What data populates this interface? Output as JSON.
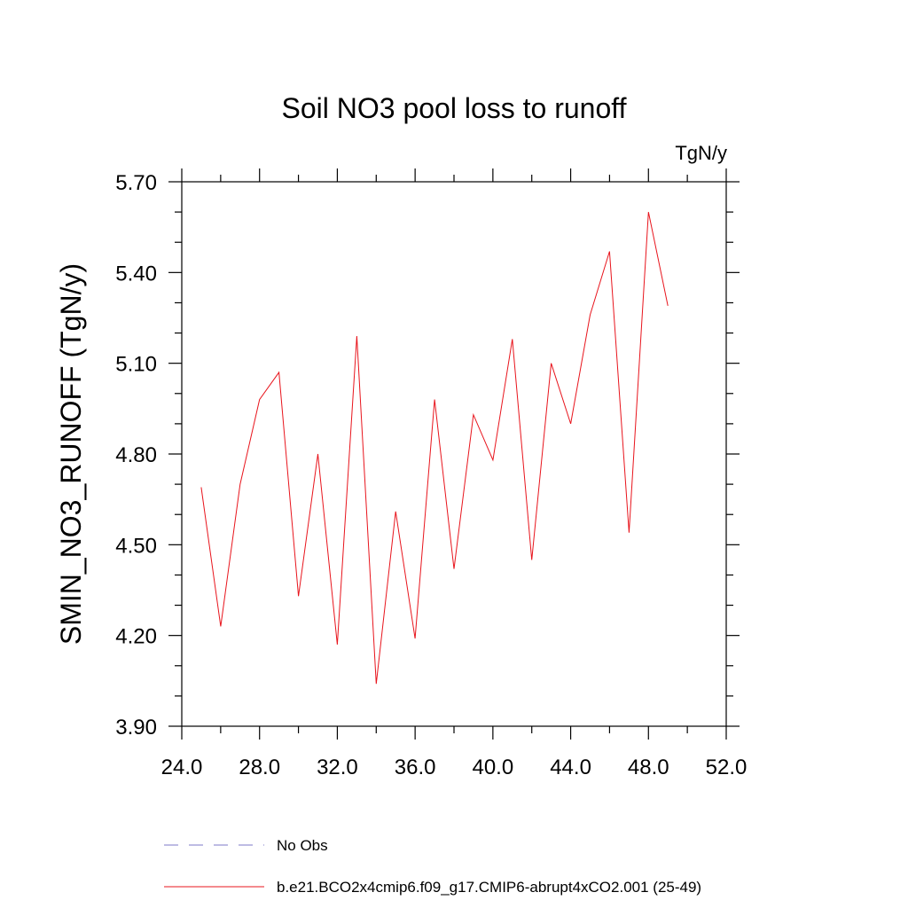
{
  "chart_data": {
    "type": "line",
    "title": "Soil NO3 pool loss to runoff",
    "units": "TgN/y",
    "ylabel": "SMIN_NO3_RUNOFF  (TgN/y)",
    "xlabel": "",
    "xlim": [
      24.0,
      52.0
    ],
    "ylim": [
      3.9,
      5.7
    ],
    "xticks": [
      24.0,
      28.0,
      32.0,
      36.0,
      40.0,
      44.0,
      48.0,
      52.0
    ],
    "yticks": [
      3.9,
      4.2,
      4.5,
      4.8,
      5.1,
      5.4,
      5.7
    ],
    "x_tick_labels": [
      "24.0",
      "28.0",
      "32.0",
      "36.0",
      "40.0",
      "44.0",
      "48.0",
      "52.0"
    ],
    "y_tick_labels": [
      "3.90",
      "4.20",
      "4.50",
      "4.80",
      "5.10",
      "5.40",
      "5.70"
    ],
    "x_minor_step": 2.0,
    "y_minor_step": 0.1,
    "series": [
      {
        "name": "b.e21.BCO2x4cmip6.f09_g17.CMIP6-abrupt4xCO2.001 (25-49)",
        "color": "#e8141c",
        "style": "solid",
        "x": [
          25,
          26,
          27,
          28,
          29,
          30,
          31,
          32,
          33,
          34,
          35,
          36,
          37,
          38,
          39,
          40,
          41,
          42,
          43,
          44,
          45,
          46,
          47,
          48,
          49
        ],
        "values": [
          4.69,
          4.23,
          4.7,
          4.98,
          5.07,
          4.33,
          4.8,
          4.17,
          5.19,
          4.04,
          4.61,
          4.19,
          4.98,
          4.42,
          4.93,
          4.78,
          5.18,
          4.45,
          5.1,
          4.9,
          5.26,
          5.47,
          4.54,
          5.6,
          5.29
        ]
      }
    ],
    "legend": [
      {
        "label": "No Obs",
        "color": "#7d78c8",
        "style": "dashed"
      },
      {
        "label": "b.e21.BCO2x4cmip6.f09_g17.CMIP6-abrupt4xCO2.001 (25-49)",
        "color": "#e8141c",
        "style": "solid"
      }
    ],
    "legend_position": "bottom"
  }
}
